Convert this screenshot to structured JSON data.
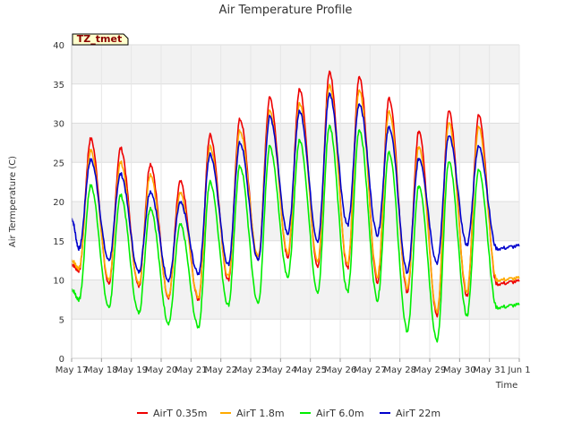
{
  "chart_data": {
    "type": "line",
    "title": "Air Temperature Profile",
    "xlabel": "Time",
    "ylabel": "Air Termperature (C)",
    "ylim": [
      0,
      40
    ],
    "yticks": [
      0,
      5,
      10,
      15,
      20,
      25,
      30,
      35,
      40
    ],
    "xlim": [
      0,
      15
    ],
    "xticks": [
      0,
      1,
      2,
      3,
      4,
      5,
      6,
      7,
      8,
      9,
      10,
      11,
      12,
      13,
      14,
      15
    ],
    "xtick_labels": [
      "May 17",
      "May 18",
      "May 19",
      "May 20",
      "May 21",
      "May 22",
      "May 23",
      "May 24",
      "May 25",
      "May 26",
      "May 27",
      "May 28",
      "May 29",
      "May 30",
      "May 31",
      "Jun 1"
    ],
    "grid": true,
    "legend_position": "bottom",
    "annotation": "TZ_tmet",
    "series": [
      {
        "name": "AirT 0.35m",
        "color": "#ee0000",
        "mins": [
          11.2,
          9.5,
          9.2,
          7.8,
          7.5,
          10.0,
          12.5,
          13.0,
          11.8,
          11.5,
          9.8,
          8.5,
          5.5,
          8.0,
          9.5
        ],
        "maxs": [
          28.0,
          26.8,
          24.8,
          22.5,
          28.5,
          30.5,
          33.2,
          34.3,
          36.5,
          36.0,
          33.2,
          29.0,
          31.5,
          31.0
        ],
        "start": 12.0,
        "end": 9.8
      },
      {
        "name": "AirT 1.8m",
        "color": "#ffaa00",
        "mins": [
          11.5,
          10.0,
          9.5,
          8.0,
          7.8,
          10.5,
          13.0,
          13.5,
          12.5,
          12.0,
          10.5,
          9.0,
          6.0,
          8.5,
          10.0
        ],
        "maxs": [
          26.5,
          25.0,
          23.5,
          21.0,
          27.0,
          29.0,
          31.5,
          32.5,
          34.8,
          34.3,
          31.5,
          27.0,
          30.0,
          29.5
        ],
        "start": 12.5,
        "end": 10.2
      },
      {
        "name": "AirT 6.0m",
        "color": "#00ee00",
        "mins": [
          7.5,
          6.5,
          5.8,
          4.5,
          4.0,
          6.8,
          7.0,
          10.5,
          8.5,
          8.5,
          7.5,
          3.5,
          2.3,
          5.5,
          6.5
        ],
        "maxs": [
          22.0,
          20.8,
          19.2,
          17.0,
          22.5,
          24.5,
          27.0,
          27.8,
          29.6,
          29.2,
          26.3,
          22.0,
          25.0,
          24.0
        ],
        "start": 8.8,
        "end": 6.8
      },
      {
        "name": "AirT 22m",
        "color": "#0000cc",
        "mins": [
          14.0,
          12.5,
          11.0,
          10.0,
          10.8,
          12.0,
          12.5,
          16.0,
          15.0,
          17.0,
          15.8,
          11.0,
          12.2,
          14.5,
          14.0
        ],
        "maxs": [
          25.3,
          23.5,
          21.3,
          19.8,
          26.0,
          27.5,
          30.8,
          31.5,
          33.7,
          32.5,
          29.5,
          25.5,
          28.3,
          27.0
        ],
        "start": 17.8,
        "end": 14.3
      }
    ]
  }
}
